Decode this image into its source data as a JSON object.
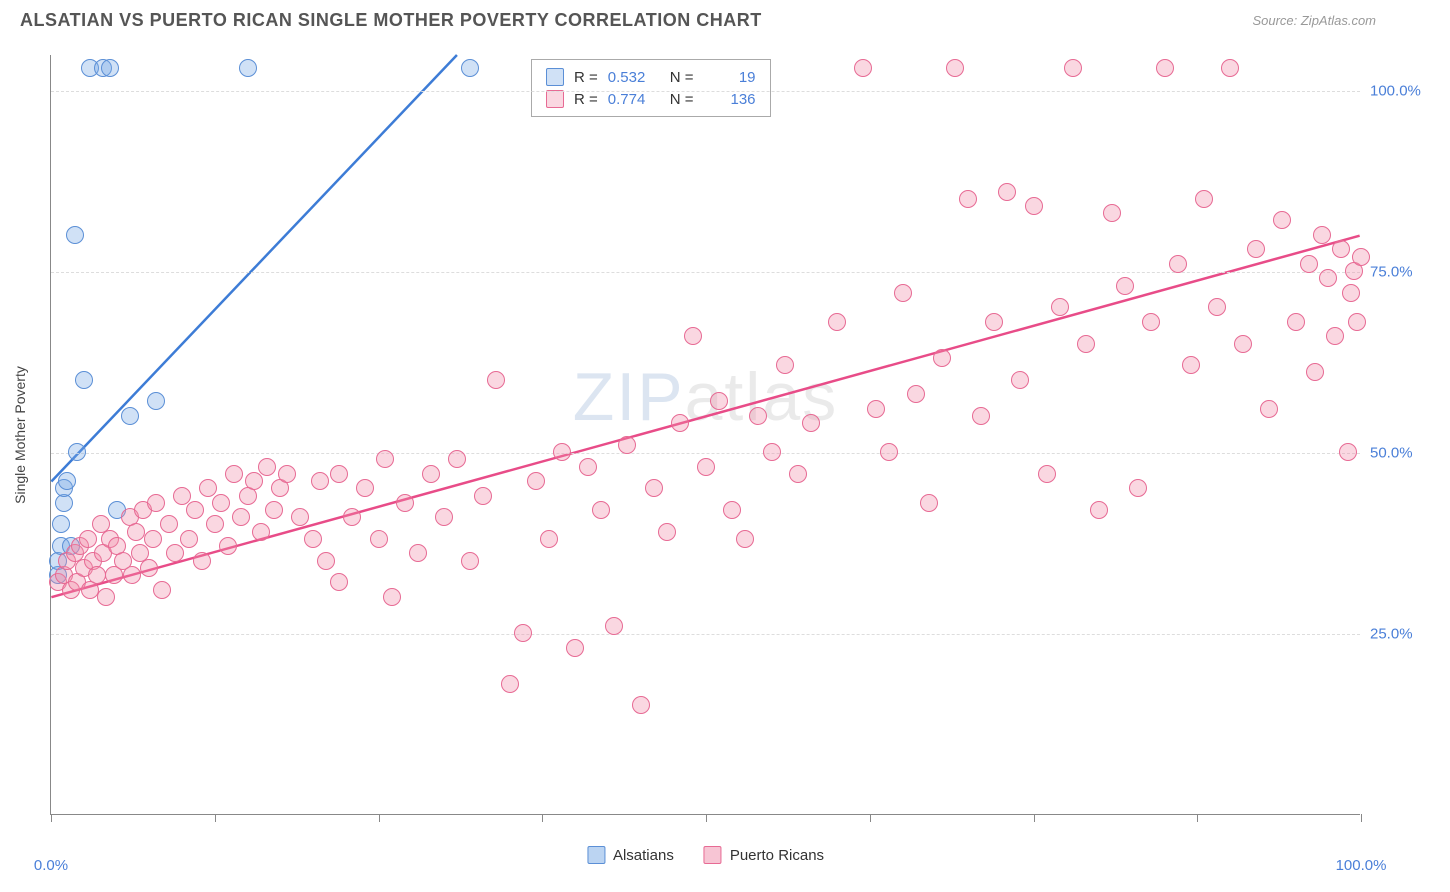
{
  "title": "ALSATIAN VS PUERTO RICAN SINGLE MOTHER POVERTY CORRELATION CHART",
  "source_label": "Source: ZipAtlas.com",
  "ylabel": "Single Mother Poverty",
  "watermark_a": "ZIP",
  "watermark_b": "atlas",
  "chart": {
    "type": "scatter",
    "xlim": [
      0,
      100
    ],
    "ylim": [
      0,
      105
    ],
    "x_ticks": [
      0,
      12.5,
      25,
      37.5,
      50,
      62.5,
      75,
      87.5,
      100
    ],
    "x_tick_labels": {
      "0": "0.0%",
      "100": "100.0%"
    },
    "y_ticks": [
      25,
      50,
      75,
      100
    ],
    "y_tick_labels": {
      "25": "25.0%",
      "50": "50.0%",
      "75": "75.0%",
      "100": "100.0%"
    },
    "grid_color": "#dddddd",
    "background_color": "#ffffff",
    "axis_color": "#888888",
    "tick_label_color": "#4a7fd8",
    "point_radius": 9,
    "point_border_width": 1.5,
    "series": [
      {
        "name": "Alsatians",
        "fill_color": "rgba(120,170,230,0.35)",
        "stroke_color": "#5b8fd6",
        "line_color": "#3d7cd6",
        "line_width": 2.5,
        "R": "0.532",
        "N": "19",
        "trend": {
          "x1": 0,
          "y1": 46,
          "x2": 31,
          "y2": 105
        },
        "points": [
          [
            0.5,
            33
          ],
          [
            0.5,
            35
          ],
          [
            0.8,
            37
          ],
          [
            0.8,
            40
          ],
          [
            1,
            43
          ],
          [
            1,
            45
          ],
          [
            1.2,
            46
          ],
          [
            1.5,
            37
          ],
          [
            1.8,
            80
          ],
          [
            2,
            50
          ],
          [
            2.5,
            60
          ],
          [
            3,
            103
          ],
          [
            4,
            103
          ],
          [
            4.5,
            103
          ],
          [
            5,
            42
          ],
          [
            6,
            55
          ],
          [
            8,
            57
          ],
          [
            15,
            103
          ],
          [
            32,
            103
          ]
        ]
      },
      {
        "name": "Puerto Ricans",
        "fill_color": "rgba(240,140,170,0.35)",
        "stroke_color": "#e76a94",
        "line_color": "#e84c88",
        "line_width": 2.5,
        "R": "0.774",
        "N": "136",
        "trend": {
          "x1": 0,
          "y1": 30,
          "x2": 100,
          "y2": 80
        },
        "points": [
          [
            0.5,
            32
          ],
          [
            1,
            33
          ],
          [
            1.2,
            35
          ],
          [
            1.5,
            31
          ],
          [
            1.8,
            36
          ],
          [
            2,
            32
          ],
          [
            2.2,
            37
          ],
          [
            2.5,
            34
          ],
          [
            2.8,
            38
          ],
          [
            3,
            31
          ],
          [
            3.2,
            35
          ],
          [
            3.5,
            33
          ],
          [
            3.8,
            40
          ],
          [
            4,
            36
          ],
          [
            4.2,
            30
          ],
          [
            4.5,
            38
          ],
          [
            4.8,
            33
          ],
          [
            5,
            37
          ],
          [
            5.5,
            35
          ],
          [
            6,
            41
          ],
          [
            6.2,
            33
          ],
          [
            6.5,
            39
          ],
          [
            6.8,
            36
          ],
          [
            7,
            42
          ],
          [
            7.5,
            34
          ],
          [
            7.8,
            38
          ],
          [
            8,
            43
          ],
          [
            8.5,
            31
          ],
          [
            9,
            40
          ],
          [
            9.5,
            36
          ],
          [
            10,
            44
          ],
          [
            10.5,
            38
          ],
          [
            11,
            42
          ],
          [
            11.5,
            35
          ],
          [
            12,
            45
          ],
          [
            12.5,
            40
          ],
          [
            13,
            43
          ],
          [
            13.5,
            37
          ],
          [
            14,
            47
          ],
          [
            14.5,
            41
          ],
          [
            15,
            44
          ],
          [
            15.5,
            46
          ],
          [
            16,
            39
          ],
          [
            16.5,
            48
          ],
          [
            17,
            42
          ],
          [
            17.5,
            45
          ],
          [
            18,
            47
          ],
          [
            19,
            41
          ],
          [
            20,
            38
          ],
          [
            20.5,
            46
          ],
          [
            21,
            35
          ],
          [
            22,
            47
          ],
          [
            22,
            32
          ],
          [
            23,
            41
          ],
          [
            24,
            45
          ],
          [
            25,
            38
          ],
          [
            25.5,
            49
          ],
          [
            26,
            30
          ],
          [
            27,
            43
          ],
          [
            28,
            36
          ],
          [
            29,
            47
          ],
          [
            30,
            41
          ],
          [
            31,
            49
          ],
          [
            32,
            35
          ],
          [
            33,
            44
          ],
          [
            34,
            60
          ],
          [
            35,
            18
          ],
          [
            36,
            25
          ],
          [
            37,
            46
          ],
          [
            38,
            38
          ],
          [
            39,
            50
          ],
          [
            40,
            23
          ],
          [
            41,
            48
          ],
          [
            42,
            42
          ],
          [
            43,
            26
          ],
          [
            44,
            51
          ],
          [
            45,
            15
          ],
          [
            46,
            45
          ],
          [
            47,
            39
          ],
          [
            48,
            54
          ],
          [
            49,
            66
          ],
          [
            50,
            48
          ],
          [
            51,
            57
          ],
          [
            52,
            42
          ],
          [
            53,
            38
          ],
          [
            54,
            55
          ],
          [
            55,
            50
          ],
          [
            56,
            62
          ],
          [
            57,
            47
          ],
          [
            58,
            54
          ],
          [
            60,
            68
          ],
          [
            62,
            103
          ],
          [
            63,
            56
          ],
          [
            64,
            50
          ],
          [
            65,
            72
          ],
          [
            66,
            58
          ],
          [
            67,
            43
          ],
          [
            68,
            63
          ],
          [
            69,
            103
          ],
          [
            70,
            85
          ],
          [
            71,
            55
          ],
          [
            72,
            68
          ],
          [
            73,
            86
          ],
          [
            74,
            60
          ],
          [
            75,
            84
          ],
          [
            76,
            47
          ],
          [
            77,
            70
          ],
          [
            78,
            103
          ],
          [
            79,
            65
          ],
          [
            80,
            42
          ],
          [
            81,
            83
          ],
          [
            82,
            73
          ],
          [
            83,
            45
          ],
          [
            84,
            68
          ],
          [
            85,
            103
          ],
          [
            86,
            76
          ],
          [
            87,
            62
          ],
          [
            88,
            85
          ],
          [
            89,
            70
          ],
          [
            90,
            103
          ],
          [
            91,
            65
          ],
          [
            92,
            78
          ],
          [
            93,
            56
          ],
          [
            94,
            82
          ],
          [
            95,
            68
          ],
          [
            96,
            76
          ],
          [
            96.5,
            61
          ],
          [
            97,
            80
          ],
          [
            97.5,
            74
          ],
          [
            98,
            66
          ],
          [
            98.5,
            78
          ],
          [
            99,
            50
          ],
          [
            99.2,
            72
          ],
          [
            99.5,
            75
          ],
          [
            99.7,
            68
          ],
          [
            100,
            77
          ]
        ]
      }
    ]
  },
  "stats_legend": {
    "R_label": "R =",
    "N_label": "N ="
  },
  "bottom_legend": {
    "items": [
      {
        "label": "Alsatians",
        "fill": "rgba(120,170,230,0.5)",
        "stroke": "#5b8fd6"
      },
      {
        "label": "Puerto Ricans",
        "fill": "rgba(240,140,170,0.5)",
        "stroke": "#e76a94"
      }
    ]
  }
}
